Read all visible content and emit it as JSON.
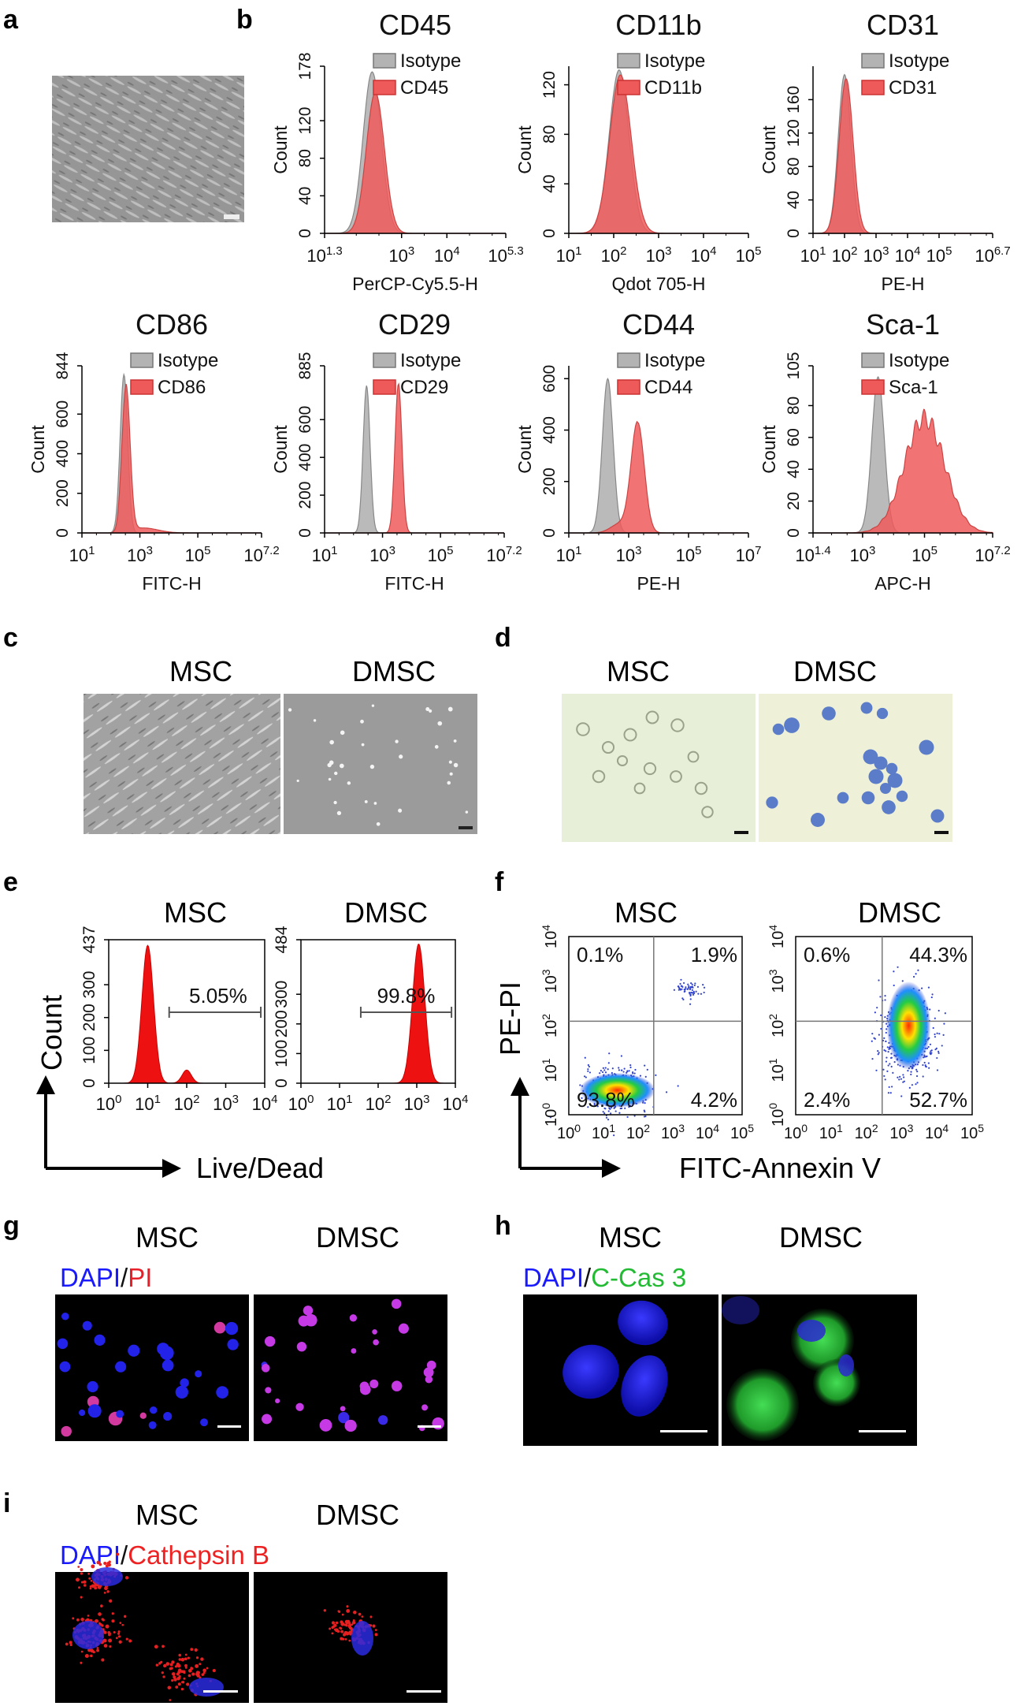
{
  "panels": {
    "a": {
      "letter": "a"
    },
    "b": {
      "letter": "b"
    },
    "c": {
      "letter": "c",
      "labels": [
        "MSC",
        "DMSC"
      ]
    },
    "d": {
      "letter": "d",
      "labels": [
        "MSC",
        "DMSC"
      ]
    },
    "e": {
      "letter": "e",
      "labels": [
        "MSC",
        "DMSC"
      ],
      "ylabel": "Count",
      "xlabel": "Live/Dead"
    },
    "f": {
      "letter": "f",
      "labels": [
        "MSC",
        "DMSC"
      ],
      "ylabel": "PE-PI",
      "xlabel": "FITC-Annexin V"
    },
    "g": {
      "letter": "g",
      "labels": [
        "MSC",
        "DMSC"
      ],
      "stain_a": "DAPI",
      "sep": "/",
      "stain_b": "PI"
    },
    "h": {
      "letter": "h",
      "labels": [
        "MSC",
        "DMSC"
      ],
      "stain_a": "DAPI",
      "sep": "/",
      "stain_b": "C-Cas 3"
    },
    "i": {
      "letter": "i",
      "labels": [
        "MSC",
        "DMSC"
      ],
      "stain_a": "DAPI",
      "sep": "/",
      "stain_b": "Cathepsin B"
    }
  },
  "colors": {
    "isotype": "#b3b3b3",
    "marker": "#ee5a5a",
    "red": "#ee1111",
    "dapi": "#1a1aff",
    "pi": "#e8202a",
    "ccas3": "#22bb33",
    "cath": "#ee2222"
  },
  "chart_data": [
    {
      "type": "area",
      "title": "CD45",
      "xlabel": "PerCP-Cy5.5-H",
      "ylabel": "Count",
      "xlim_log": [
        1.3,
        5.3
      ],
      "xticks": [
        [
          1.3,
          "1.3"
        ],
        [
          3,
          "3"
        ],
        [
          4,
          "4"
        ],
        [
          5.3,
          "5.3"
        ]
      ],
      "ylim": [
        0,
        178
      ],
      "yticks": [
        "0",
        "40",
        "80",
        "120",
        "178"
      ],
      "legend": [
        "Isotype",
        "CD45"
      ],
      "series": [
        {
          "name": "Isotype",
          "peak_log": 2.35,
          "width": 0.2,
          "height": 172
        },
        {
          "name": "CD45",
          "peak_log": 2.42,
          "width": 0.2,
          "height": 150
        }
      ]
    },
    {
      "type": "area",
      "title": "CD11b",
      "xlabel": "Qdot 705-H",
      "ylabel": "Count",
      "xlim_log": [
        1,
        5
      ],
      "xticks": [
        [
          1,
          "1"
        ],
        [
          2,
          "2"
        ],
        [
          3,
          "3"
        ],
        [
          4,
          "4"
        ],
        [
          5,
          "5"
        ]
      ],
      "ylim": [
        0,
        135
      ],
      "yticks": [
        "0",
        "40",
        "80",
        "120"
      ],
      "legend": [
        "Isotype",
        "CD11b"
      ],
      "series": [
        {
          "name": "Isotype",
          "peak_log": 2.12,
          "width": 0.22,
          "height": 132
        },
        {
          "name": "CD11b",
          "peak_log": 2.15,
          "width": 0.24,
          "height": 128
        }
      ]
    },
    {
      "type": "area",
      "title": "CD31",
      "xlabel": "PE-H",
      "ylabel": "Count",
      "xlim_log": [
        1,
        6.7
      ],
      "xticks": [
        [
          1,
          "1"
        ],
        [
          2,
          "2"
        ],
        [
          3,
          "3"
        ],
        [
          4,
          "4"
        ],
        [
          5,
          "5"
        ],
        [
          6.7,
          "6.7"
        ]
      ],
      "ylim": [
        0,
        200
      ],
      "yticks": [
        "0",
        "40",
        "80",
        "120",
        "160"
      ],
      "legend": [
        "Isotype",
        "CD31"
      ],
      "series": [
        {
          "name": "Isotype",
          "peak_log": 2.0,
          "width": 0.2,
          "height": 190
        },
        {
          "name": "CD31",
          "peak_log": 2.05,
          "width": 0.22,
          "height": 185
        }
      ]
    },
    {
      "type": "area",
      "title": "CD86",
      "xlabel": "FITC-H",
      "ylabel": "Count",
      "xlim_log": [
        1,
        7.2
      ],
      "xticks": [
        [
          1,
          "1"
        ],
        [
          3,
          "3"
        ],
        [
          5,
          "5"
        ],
        [
          7.2,
          "7.2"
        ]
      ],
      "ylim": [
        0,
        844
      ],
      "yticks": [
        "0",
        "200",
        "400",
        "600",
        "844"
      ],
      "legend": [
        "Isotype",
        "CD86"
      ],
      "series": [
        {
          "name": "Isotype",
          "peak_log": 2.45,
          "width": 0.13,
          "height": 800
        },
        {
          "name": "CD86",
          "peak_log": 2.52,
          "width": 0.14,
          "height": 740
        }
      ]
    },
    {
      "type": "area",
      "title": "CD29",
      "xlabel": "FITC-H",
      "ylabel": "Count",
      "xlim_log": [
        1,
        7.2
      ],
      "xticks": [
        [
          1,
          "1"
        ],
        [
          3,
          "3"
        ],
        [
          5,
          "5"
        ],
        [
          7.2,
          "7.2"
        ]
      ],
      "ylim": [
        0,
        885
      ],
      "yticks": [
        "0",
        "200",
        "400",
        "600",
        "885"
      ],
      "legend": [
        "Isotype",
        "CD29"
      ],
      "series": [
        {
          "name": "Isotype",
          "peak_log": 2.45,
          "width": 0.12,
          "height": 780
        },
        {
          "name": "CD29",
          "peak_log": 3.55,
          "width": 0.12,
          "height": 790
        }
      ]
    },
    {
      "type": "area",
      "title": "CD44",
      "xlabel": "PE-H",
      "ylabel": "Count",
      "xlim_log": [
        1,
        7
      ],
      "xticks": [
        [
          1,
          "1"
        ],
        [
          3,
          "3"
        ],
        [
          5,
          "5"
        ],
        [
          7,
          "7"
        ]
      ],
      "ylim": [
        0,
        650
      ],
      "yticks": [
        "0",
        "200",
        "400",
        "600"
      ],
      "legend": [
        "Isotype",
        "CD44"
      ],
      "series": [
        {
          "name": "Isotype",
          "peak_log": 2.3,
          "width": 0.18,
          "height": 600
        },
        {
          "name": "CD44",
          "peak_log": 3.3,
          "width": 0.22,
          "height": 430
        }
      ]
    },
    {
      "type": "area",
      "title": "Sca-1",
      "xlabel": "APC-H",
      "ylabel": "Count",
      "xlim_log": [
        1.4,
        7.2
      ],
      "xticks": [
        [
          1.4,
          "1.4"
        ],
        [
          3,
          "3"
        ],
        [
          5,
          "5"
        ],
        [
          7.2,
          "7.2"
        ]
      ],
      "ylim": [
        0,
        105
      ],
      "yticks": [
        "0",
        "20",
        "40",
        "60",
        "80",
        "105"
      ],
      "legend": [
        "Isotype",
        "Sca-1"
      ],
      "series": [
        {
          "name": "Isotype",
          "peak_log": 3.5,
          "width": 0.2,
          "height": 98
        },
        {
          "name": "Sca-1",
          "peak_log": 5.0,
          "width": 0.65,
          "height": 72
        }
      ]
    },
    {
      "type": "area",
      "title": "MSC",
      "xlabel": "Live/Dead",
      "ylabel": "Count",
      "xlim_log": [
        0,
        4
      ],
      "ylim": [
        0,
        437
      ],
      "yticks": [
        "0",
        "100",
        "200",
        "300",
        "437"
      ],
      "gate_label": "5.05%",
      "series": [
        {
          "name": "Live/Dead",
          "peak_log": 1.0,
          "width": 0.15,
          "height": 420,
          "shoulder_log": 2.0,
          "shoulder_height": 40
        }
      ]
    },
    {
      "type": "area",
      "title": "DMSC",
      "xlabel": "Live/Dead",
      "ylabel": "Count",
      "xlim_log": [
        0,
        4
      ],
      "ylim": [
        0,
        484
      ],
      "yticks": [
        "0",
        "100",
        "200",
        "300",
        "484"
      ],
      "gate_label": "99.8%",
      "series": [
        {
          "name": "Live/Dead",
          "peak_log": 3.05,
          "width": 0.16,
          "height": 470
        }
      ]
    },
    {
      "type": "scatter",
      "title": "MSC",
      "xlabel": "FITC-Annexin V",
      "ylabel": "PE-PI",
      "xlim_log": [
        0,
        5
      ],
      "ylim_log": [
        0,
        4
      ],
      "quadrants": {
        "ul": "0.1%",
        "ur": "1.9%",
        "ll": "93.8%",
        "lr": "4.2%"
      }
    },
    {
      "type": "scatter",
      "title": "DMSC",
      "xlabel": "FITC-Annexin V",
      "ylabel": "PE-PI",
      "xlim_log": [
        0,
        5
      ],
      "ylim_log": [
        0,
        4
      ],
      "quadrants": {
        "ul": "0.6%",
        "ur": "44.3%",
        "ll": "2.4%",
        "lr": "52.7%"
      }
    }
  ]
}
